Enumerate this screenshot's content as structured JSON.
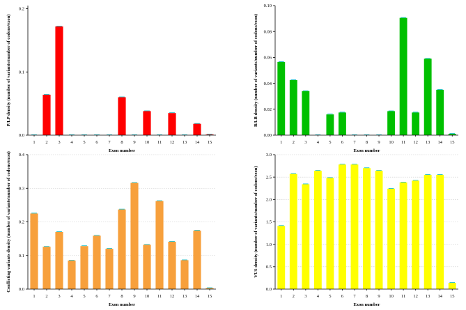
{
  "chart_data": [
    {
      "type": "bar",
      "title": "",
      "xlabel": "Exon number",
      "ylabel": "P/LP density (number of variants/number of codons/exon)",
      "categories": [
        "1",
        "2",
        "3",
        "4",
        "5",
        "6",
        "7",
        "8",
        "9",
        "10",
        "11",
        "12",
        "13",
        "14",
        "15"
      ],
      "values": [
        0,
        0.064,
        0.172,
        0,
        0,
        0,
        0,
        0.06,
        0,
        0.038,
        0,
        0.035,
        0,
        0.018,
        0.001
      ],
      "yticks": [
        0,
        0.1,
        0.2
      ],
      "ytick_labels": [
        "0.0",
        "0.1",
        "0.2"
      ],
      "ylim": [
        0,
        0.205
      ],
      "color": "#ff0000",
      "error_color": "#00b7c3"
    },
    {
      "type": "bar",
      "title": "",
      "xlabel": "Exon number",
      "ylabel": "B/LB density (number of variants/number of codons/exon)",
      "categories": [
        "1",
        "2",
        "3",
        "4",
        "5",
        "6",
        "7",
        "8",
        "9",
        "10",
        "11",
        "12",
        "13",
        "14",
        "15"
      ],
      "values": [
        0.0565,
        0.0425,
        0.034,
        0,
        0.016,
        0.0175,
        0,
        0,
        0,
        0.0185,
        0.0905,
        0.0175,
        0.059,
        0.035,
        0.001
      ],
      "yticks": [
        0,
        0.02,
        0.04,
        0.06,
        0.08,
        0.1
      ],
      "ytick_labels": [
        "0.00",
        "0.02",
        "0.04",
        "0.06",
        "0.08",
        "0.10"
      ],
      "ylim": [
        0,
        0.1
      ],
      "color": "#00c000",
      "error_color": "#00b7c3"
    },
    {
      "type": "bar",
      "title": "",
      "xlabel": "Exon number",
      "ylabel": "Conflicting variants density (number of variants/number of codons/exon)",
      "categories": [
        "1",
        "2",
        "3",
        "4",
        "5",
        "6",
        "7",
        "8",
        "9",
        "10",
        "11",
        "12",
        "13",
        "14",
        "15"
      ],
      "values": [
        0.225,
        0.126,
        0.17,
        0.085,
        0.128,
        0.159,
        0.12,
        0.237,
        0.316,
        0.132,
        0.262,
        0.141,
        0.086,
        0.174,
        0.003
      ],
      "yticks": [
        0,
        0.1,
        0.2,
        0.3,
        0.4
      ],
      "ytick_labels": [
        "0.0",
        "0.1",
        "0.2",
        "0.3",
        "0.4"
      ],
      "ylim": [
        0,
        0.4
      ],
      "color": "#f7a03c",
      "error_color": "#00b7c3"
    },
    {
      "type": "bar",
      "title": "",
      "xlabel": "Exon number",
      "ylabel": "VUS density (number of variants/number of codons/exon)",
      "categories": [
        "1",
        "2",
        "3",
        "4",
        "5",
        "6",
        "7",
        "8",
        "9",
        "10",
        "11",
        "12",
        "13",
        "14",
        "15"
      ],
      "values": [
        1.41,
        2.57,
        2.34,
        2.64,
        2.48,
        2.78,
        2.78,
        2.7,
        2.64,
        2.24,
        2.38,
        2.42,
        2.55,
        2.55,
        0.14
      ],
      "yticks": [
        0,
        0.5,
        1,
        1.5,
        2,
        2.5,
        3
      ],
      "ytick_labels": [
        "0.0",
        "0.5",
        "1.0",
        "1.5",
        "2.0",
        "2.5",
        "3.0"
      ],
      "ylim": [
        0,
        3.0
      ],
      "color": "#ffff00",
      "error_color": "#00b7c3"
    }
  ]
}
